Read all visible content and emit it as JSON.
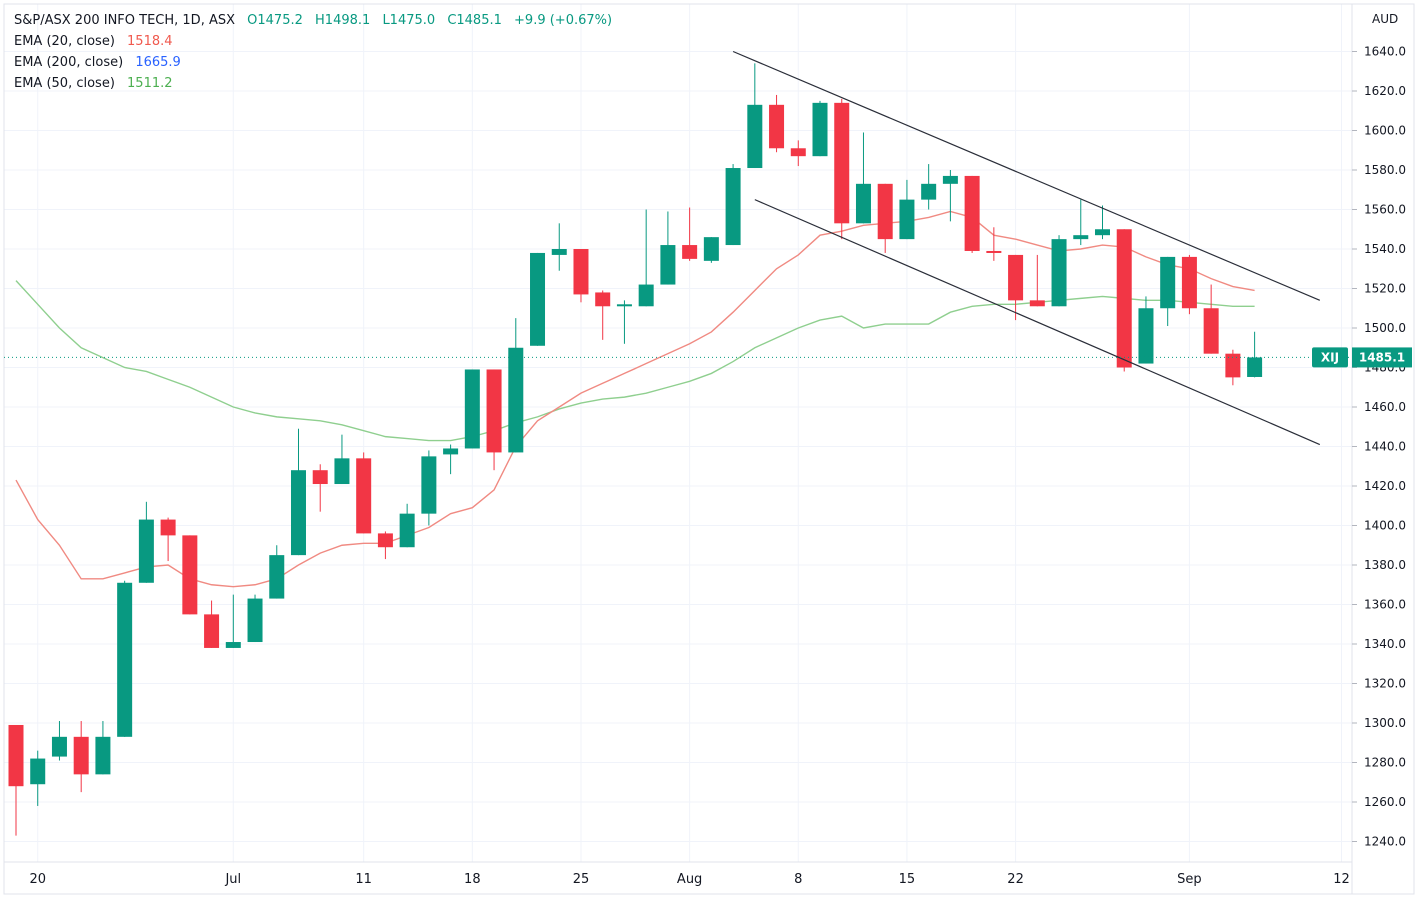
{
  "legend": {
    "symbol": "S&P/ASX 200 INFO TECH, 1D, ASX",
    "open": "O1475.2",
    "high": "H1498.1",
    "low": "L1475.0",
    "close": "C1485.1",
    "change": "+9.9 (+0.67%)",
    "indicators": [
      {
        "label": "EMA (20, close)",
        "value": "1518.4",
        "color": "#f05a4f"
      },
      {
        "label": "EMA (200, close)",
        "value": "1665.9",
        "color": "#2962ff"
      },
      {
        "label": "EMA (50, close)",
        "value": "1511.2",
        "color": "#4caf50"
      }
    ]
  },
  "currency": "AUD",
  "price_badge": {
    "ticker": "XIJ",
    "price": "1485.1",
    "value": 1485.1
  },
  "colors": {
    "up": "#089981",
    "down": "#f23645",
    "ema20": "#f08a82",
    "ema50": "#8fcf8f",
    "grid": "#f0f3fa",
    "trend": "#2a2e39"
  },
  "chart_data": {
    "type": "candlestick",
    "title": "S&P/ASX 200 INFO TECH, 1D, ASX",
    "ylim": [
      1232,
      1654
    ],
    "y_ticks": [
      1240,
      1260,
      1280,
      1300,
      1320,
      1340,
      1360,
      1380,
      1400,
      1420,
      1440,
      1460,
      1480,
      1500,
      1520,
      1540,
      1560,
      1580,
      1600,
      1620,
      1640
    ],
    "x_tick_labels": [
      {
        "label": "20",
        "bar": 1
      },
      {
        "label": "Jul",
        "bar": 10
      },
      {
        "label": "11",
        "bar": 16
      },
      {
        "label": "18",
        "bar": 21
      },
      {
        "label": "25",
        "bar": 26
      },
      {
        "label": "Aug",
        "bar": 31
      },
      {
        "label": "8",
        "bar": 36
      },
      {
        "label": "15",
        "bar": 41
      },
      {
        "label": "22",
        "bar": 46
      },
      {
        "label": "Sep",
        "bar": 54
      },
      {
        "label": "12",
        "bar": 61
      }
    ],
    "bar_count_span": 62,
    "candles": [
      {
        "o": 1299,
        "h": 1299,
        "l": 1243,
        "c": 1268
      },
      {
        "o": 1269,
        "h": 1286,
        "l": 1258,
        "c": 1282
      },
      {
        "o": 1283,
        "h": 1301,
        "l": 1281,
        "c": 1293
      },
      {
        "o": 1293,
        "h": 1301,
        "l": 1265,
        "c": 1274
      },
      {
        "o": 1274,
        "h": 1301,
        "l": 1274,
        "c": 1293
      },
      {
        "o": 1293,
        "h": 1372,
        "l": 1293,
        "c": 1371
      },
      {
        "o": 1371,
        "h": 1412,
        "l": 1371,
        "c": 1403
      },
      {
        "o": 1403,
        "h": 1404,
        "l": 1382,
        "c": 1395
      },
      {
        "o": 1395,
        "h": 1395,
        "l": 1355,
        "c": 1355
      },
      {
        "o": 1355,
        "h": 1362,
        "l": 1338,
        "c": 1338
      },
      {
        "o": 1338,
        "h": 1365,
        "l": 1338,
        "c": 1341
      },
      {
        "o": 1341,
        "h": 1365,
        "l": 1341,
        "c": 1363
      },
      {
        "o": 1363,
        "h": 1390,
        "l": 1363,
        "c": 1385
      },
      {
        "o": 1385,
        "h": 1449,
        "l": 1385,
        "c": 1428
      },
      {
        "o": 1428,
        "h": 1431,
        "l": 1407,
        "c": 1421
      },
      {
        "o": 1421,
        "h": 1446,
        "l": 1421,
        "c": 1434
      },
      {
        "o": 1434,
        "h": 1437,
        "l": 1396,
        "c": 1396
      },
      {
        "o": 1396,
        "h": 1397,
        "l": 1383,
        "c": 1389
      },
      {
        "o": 1389,
        "h": 1411,
        "l": 1389,
        "c": 1406
      },
      {
        "o": 1406,
        "h": 1438,
        "l": 1400,
        "c": 1435
      },
      {
        "o": 1436,
        "h": 1441,
        "l": 1426,
        "c": 1439
      },
      {
        "o": 1439,
        "h": 1479,
        "l": 1439,
        "c": 1479
      },
      {
        "o": 1479,
        "h": 1479,
        "l": 1428,
        "c": 1437
      },
      {
        "o": 1437,
        "h": 1505,
        "l": 1437,
        "c": 1490
      },
      {
        "o": 1491,
        "h": 1538,
        "l": 1491,
        "c": 1538
      },
      {
        "o": 1537,
        "h": 1553,
        "l": 1529,
        "c": 1540
      },
      {
        "o": 1540,
        "h": 1540,
        "l": 1513,
        "c": 1517
      },
      {
        "o": 1518,
        "h": 1519,
        "l": 1494,
        "c": 1511
      },
      {
        "o": 1511,
        "h": 1514,
        "l": 1492,
        "c": 1512
      },
      {
        "o": 1511,
        "h": 1560,
        "l": 1511,
        "c": 1522
      },
      {
        "o": 1522,
        "h": 1559,
        "l": 1522,
        "c": 1542
      },
      {
        "o": 1542,
        "h": 1561,
        "l": 1534,
        "c": 1535
      },
      {
        "o": 1534,
        "h": 1546,
        "l": 1533,
        "c": 1546
      },
      {
        "o": 1542,
        "h": 1583,
        "l": 1542,
        "c": 1581
      },
      {
        "o": 1581,
        "h": 1634,
        "l": 1581,
        "c": 1613
      },
      {
        "o": 1613,
        "h": 1618,
        "l": 1589,
        "c": 1591
      },
      {
        "o": 1591,
        "h": 1595,
        "l": 1582,
        "c": 1587
      },
      {
        "o": 1587,
        "h": 1615,
        "l": 1587,
        "c": 1614
      },
      {
        "o": 1614,
        "h": 1616,
        "l": 1545,
        "c": 1553
      },
      {
        "o": 1553,
        "h": 1599,
        "l": 1553,
        "c": 1573
      },
      {
        "o": 1573,
        "h": 1573,
        "l": 1538,
        "c": 1545
      },
      {
        "o": 1545,
        "h": 1575,
        "l": 1545,
        "c": 1565
      },
      {
        "o": 1565,
        "h": 1583,
        "l": 1560,
        "c": 1573
      },
      {
        "o": 1573,
        "h": 1580,
        "l": 1554,
        "c": 1577
      },
      {
        "o": 1577,
        "h": 1577,
        "l": 1538,
        "c": 1539
      },
      {
        "o": 1539,
        "h": 1551,
        "l": 1534,
        "c": 1538
      },
      {
        "o": 1537,
        "h": 1537,
        "l": 1504,
        "c": 1514
      },
      {
        "o": 1514,
        "h": 1537,
        "l": 1511,
        "c": 1511
      },
      {
        "o": 1511,
        "h": 1547,
        "l": 1511,
        "c": 1545
      },
      {
        "o": 1545,
        "h": 1565,
        "l": 1542,
        "c": 1547
      },
      {
        "o": 1547,
        "h": 1562,
        "l": 1545,
        "c": 1550
      },
      {
        "o": 1550,
        "h": 1550,
        "l": 1478,
        "c": 1480
      },
      {
        "o": 1482,
        "h": 1516,
        "l": 1482,
        "c": 1510
      },
      {
        "o": 1510,
        "h": 1536,
        "l": 1501,
        "c": 1536
      },
      {
        "o": 1536,
        "h": 1537,
        "l": 1507,
        "c": 1510
      },
      {
        "o": 1510,
        "h": 1522,
        "l": 1487,
        "c": 1487
      },
      {
        "o": 1487,
        "h": 1489,
        "l": 1471,
        "c": 1475
      },
      {
        "o": 1475.2,
        "h": 1498.1,
        "l": 1475,
        "c": 1485.1
      }
    ],
    "ema20": [
      [
        0,
        1423
      ],
      [
        1,
        1403
      ],
      [
        2,
        1390
      ],
      [
        3,
        1373
      ],
      [
        4,
        1373
      ],
      [
        5,
        1376
      ],
      [
        6,
        1379
      ],
      [
        7,
        1380
      ],
      [
        8,
        1373
      ],
      [
        9,
        1370
      ],
      [
        10,
        1369
      ],
      [
        11,
        1370
      ],
      [
        12,
        1373
      ],
      [
        13,
        1380
      ],
      [
        14,
        1386
      ],
      [
        15,
        1390
      ],
      [
        16,
        1391
      ],
      [
        17,
        1391
      ],
      [
        18,
        1395
      ],
      [
        19,
        1399
      ],
      [
        20,
        1406
      ],
      [
        21,
        1409
      ],
      [
        22,
        1418
      ],
      [
        23,
        1440
      ],
      [
        24,
        1453
      ],
      [
        25,
        1460
      ],
      [
        26,
        1467
      ],
      [
        27,
        1472
      ],
      [
        28,
        1477
      ],
      [
        29,
        1482
      ],
      [
        30,
        1487
      ],
      [
        31,
        1492
      ],
      [
        32,
        1498
      ],
      [
        33,
        1508
      ],
      [
        34,
        1519
      ],
      [
        35,
        1530
      ],
      [
        36,
        1537
      ],
      [
        37,
        1547
      ],
      [
        38,
        1549
      ],
      [
        39,
        1552
      ],
      [
        40,
        1553
      ],
      [
        41,
        1554
      ],
      [
        42,
        1556
      ],
      [
        43,
        1559
      ],
      [
        44,
        1556
      ],
      [
        45,
        1547
      ],
      [
        46,
        1545
      ],
      [
        47,
        1542
      ],
      [
        48,
        1539
      ],
      [
        49,
        1540
      ],
      [
        50,
        1542
      ],
      [
        51,
        1541
      ],
      [
        52,
        1536
      ],
      [
        53,
        1532
      ],
      [
        54,
        1530
      ],
      [
        55,
        1525
      ],
      [
        56,
        1521
      ],
      [
        57,
        1519
      ]
    ],
    "ema50": [
      [
        0,
        1524
      ],
      [
        1,
        1512
      ],
      [
        2,
        1500
      ],
      [
        3,
        1490
      ],
      [
        4,
        1485
      ],
      [
        5,
        1480
      ],
      [
        6,
        1478
      ],
      [
        7,
        1474
      ],
      [
        8,
        1470
      ],
      [
        9,
        1465
      ],
      [
        10,
        1460
      ],
      [
        11,
        1457
      ],
      [
        12,
        1455
      ],
      [
        13,
        1454
      ],
      [
        14,
        1453
      ],
      [
        15,
        1451
      ],
      [
        16,
        1448
      ],
      [
        17,
        1445
      ],
      [
        18,
        1444
      ],
      [
        19,
        1443
      ],
      [
        20,
        1443
      ],
      [
        21,
        1445
      ],
      [
        22,
        1448
      ],
      [
        23,
        1452
      ],
      [
        24,
        1455
      ],
      [
        25,
        1459
      ],
      [
        26,
        1462
      ],
      [
        27,
        1464
      ],
      [
        28,
        1465
      ],
      [
        29,
        1467
      ],
      [
        30,
        1470
      ],
      [
        31,
        1473
      ],
      [
        32,
        1477
      ],
      [
        33,
        1483
      ],
      [
        34,
        1490
      ],
      [
        35,
        1495
      ],
      [
        36,
        1500
      ],
      [
        37,
        1504
      ],
      [
        38,
        1506
      ],
      [
        39,
        1500
      ],
      [
        40,
        1502
      ],
      [
        41,
        1502
      ],
      [
        42,
        1502
      ],
      [
        43,
        1508
      ],
      [
        44,
        1511
      ],
      [
        45,
        1512
      ],
      [
        46,
        1512
      ],
      [
        47,
        1513
      ],
      [
        48,
        1514
      ],
      [
        49,
        1515
      ],
      [
        50,
        1516
      ],
      [
        51,
        1515
      ],
      [
        52,
        1514
      ],
      [
        53,
        1514
      ],
      [
        54,
        1513
      ],
      [
        55,
        1512
      ],
      [
        56,
        1511
      ],
      [
        57,
        1511
      ]
    ],
    "trend_lines": [
      {
        "name": "upper-channel",
        "from": [
          33,
          1640
        ],
        "to": [
          60,
          1514
        ]
      },
      {
        "name": "lower-channel",
        "from": [
          34,
          1565
        ],
        "to": [
          60,
          1441
        ]
      }
    ],
    "last_price_line": 1485.1
  }
}
